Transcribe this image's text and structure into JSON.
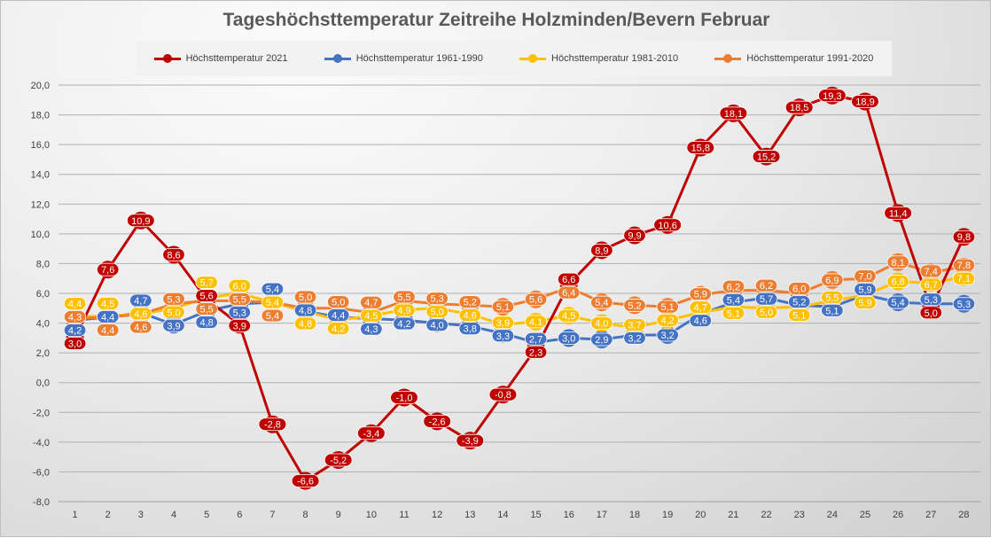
{
  "chart_data": {
    "type": "line",
    "title": "Tageshöchsttemperatur Zeitreihe Holzminden/Bevern Februar",
    "xlabel": "",
    "ylabel": "",
    "categories": [
      "1",
      "2",
      "3",
      "4",
      "5",
      "6",
      "7",
      "8",
      "9",
      "10",
      "11",
      "12",
      "13",
      "14",
      "15",
      "16",
      "17",
      "18",
      "19",
      "20",
      "21",
      "22",
      "23",
      "24",
      "25",
      "26",
      "27",
      "28"
    ],
    "ylim": [
      -8,
      20
    ],
    "yticks": [
      "-8,0",
      "-6,0",
      "-4,0",
      "-2,0",
      "0,0",
      "2,0",
      "4,0",
      "6,0",
      "8,0",
      "10,0",
      "12,0",
      "14,0",
      "16,0",
      "18,0",
      "20,0"
    ],
    "grid": true,
    "legend": "top",
    "series": [
      {
        "name": "Höchsttemperatur 2021",
        "color": "#c00000",
        "values": [
          3.0,
          7.6,
          10.9,
          8.6,
          5.6,
          3.9,
          -2.8,
          -6.6,
          -5.2,
          -3.4,
          -1.0,
          -2.6,
          -3.9,
          -0.8,
          2.3,
          6.6,
          8.9,
          9.9,
          10.6,
          15.8,
          18.1,
          15.2,
          18.5,
          19.3,
          18.9,
          11.4,
          5.0,
          9.8
        ]
      },
      {
        "name": "Höchsttemperatur 1961-1990",
        "color": "#4472c4",
        "values": [
          4.2,
          4.4,
          4.7,
          3.9,
          4.8,
          5.3,
          5.4,
          4.8,
          4.4,
          4.3,
          4.2,
          4.0,
          3.8,
          3.3,
          2.7,
          3.0,
          2.9,
          3.2,
          3.2,
          4.6,
          5.4,
          5.7,
          5.2,
          5.1,
          5.9,
          5.4,
          5.3,
          5.3
        ]
      },
      {
        "name": "Höchsttemperatur 1981-2010",
        "color": "#ffc000",
        "values": [
          4.4,
          4.5,
          4.6,
          5.0,
          5.7,
          6.0,
          5.4,
          4.8,
          4.2,
          4.5,
          4.9,
          5.0,
          4.6,
          3.9,
          4.1,
          4.5,
          4.0,
          3.7,
          4.2,
          4.7,
          5.1,
          5.0,
          5.1,
          5.5,
          5.9,
          6.8,
          6.7,
          7.1
        ]
      },
      {
        "name": "Höchsttemperatur 1991-2020",
        "color": "#ed7d31",
        "values": [
          4.3,
          4.4,
          4.6,
          5.3,
          5.5,
          5.5,
          5.4,
          5.0,
          5.0,
          4.7,
          5.5,
          5.3,
          5.2,
          5.1,
          5.6,
          6.4,
          5.4,
          5.2,
          5.1,
          5.9,
          6.2,
          6.2,
          6.0,
          6.9,
          7.0,
          8.1,
          7.4,
          7.8
        ]
      }
    ]
  }
}
